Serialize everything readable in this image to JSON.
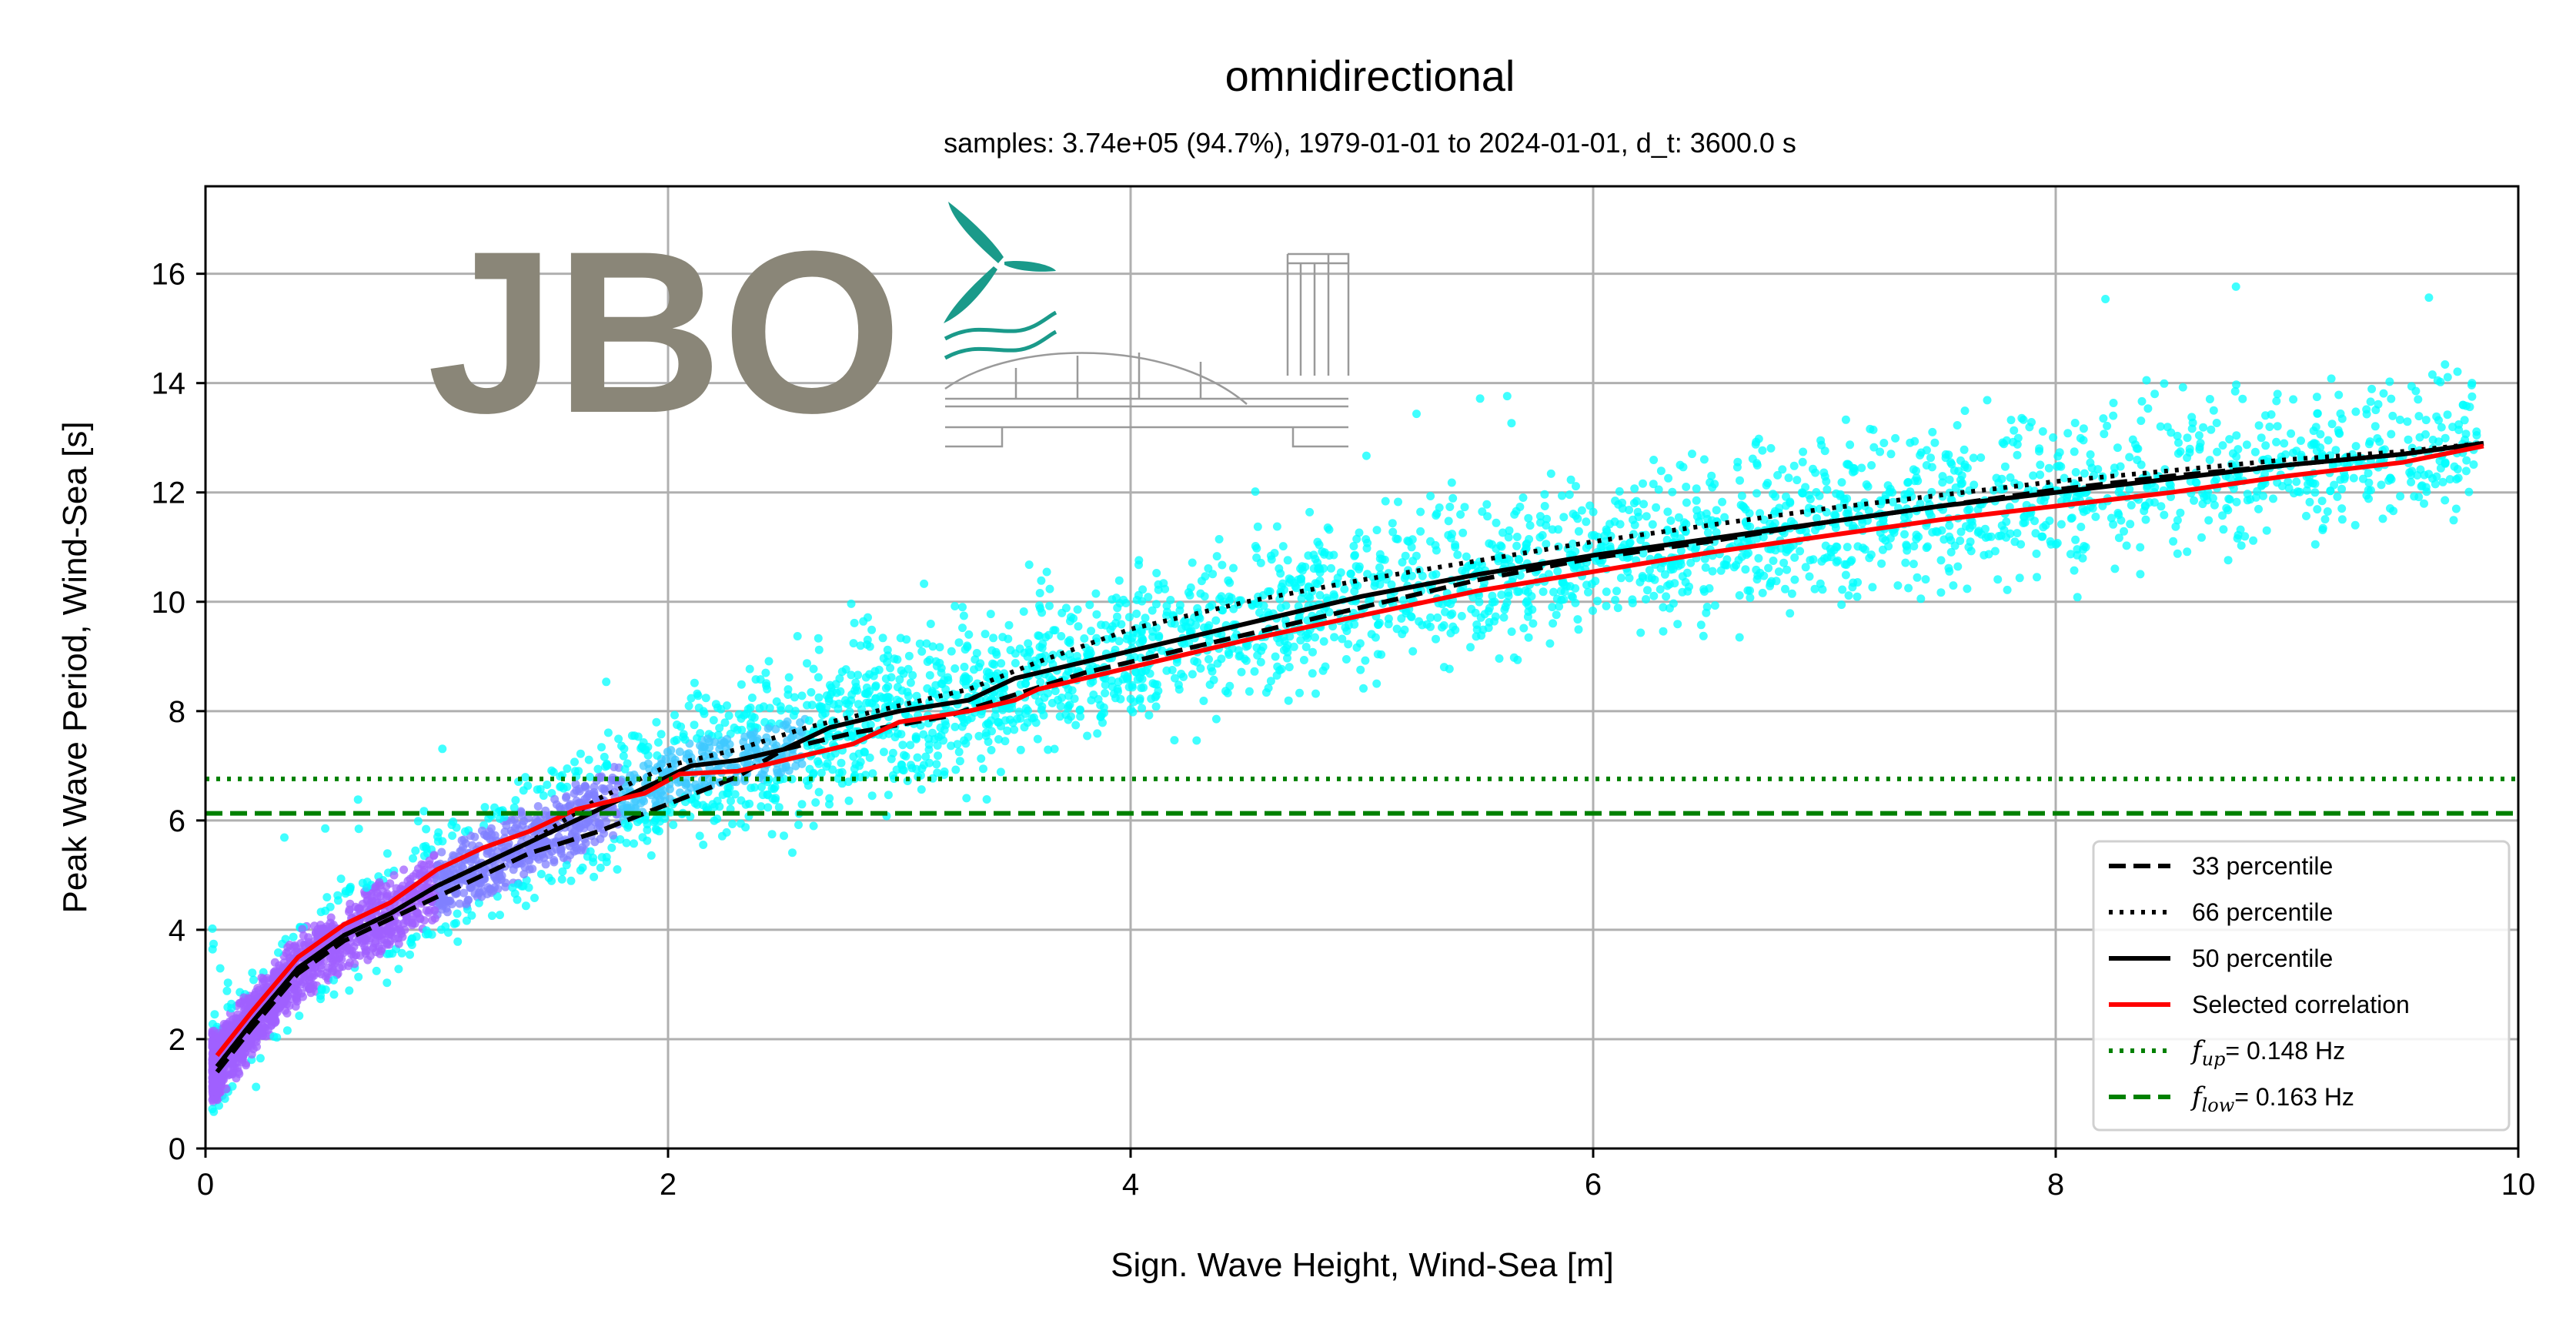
{
  "chart_data": {
    "type": "scatter",
    "title": "omnidirectional",
    "subtitle": "samples: 3.74e+05 (94.7%), 1979-01-01 to 2024-01-01, d_t: 3600.0 s",
    "xlabel": "Sign. Wave Height, Wind-Sea [m]",
    "ylabel": "Peak Wave Period, Wind-Sea [s]",
    "xlim": [
      0,
      10
    ],
    "ylim": [
      0,
      17.6
    ],
    "xticks": [
      0,
      2,
      4,
      6,
      8,
      10
    ],
    "xtick_labels": [
      "0",
      "2",
      "4",
      "6",
      "8",
      "10"
    ],
    "yticks": [
      0,
      2,
      4,
      6,
      8,
      10,
      12,
      14,
      16
    ],
    "ytick_labels": [
      "0",
      "2",
      "4",
      "6",
      "8",
      "10",
      "12",
      "14",
      "16"
    ],
    "grid": true,
    "legend_position": "lower-right",
    "series": [
      {
        "name": "33 percentile",
        "color": "#000000",
        "style": "dashed",
        "x": [
          0.05,
          0.2,
          0.4,
          0.6,
          0.8,
          1.0,
          1.2,
          1.4,
          1.7,
          2.0,
          2.3,
          2.5,
          2.8,
          3.2,
          3.5,
          3.8,
          4.2,
          4.6,
          5.0,
          5.5,
          6.0,
          6.5,
          7.0,
          7.5,
          8.0,
          8.5,
          9.0,
          9.5,
          9.85
        ],
        "y": [
          1.4,
          2.2,
          3.2,
          3.8,
          4.2,
          4.6,
          5.0,
          5.4,
          5.8,
          6.3,
          6.8,
          7.3,
          7.6,
          7.9,
          8.3,
          8.7,
          9.1,
          9.5,
          9.9,
          10.4,
          10.8,
          11.1,
          11.45,
          11.75,
          12.05,
          12.3,
          12.5,
          12.7,
          12.9
        ]
      },
      {
        "name": "66 percentile",
        "color": "#000000",
        "style": "dotted",
        "x": [
          0.05,
          0.2,
          0.4,
          0.6,
          0.8,
          1.0,
          1.2,
          1.4,
          1.7,
          2.0,
          2.3,
          2.6,
          3.0,
          3.3,
          3.6,
          4.0,
          4.5,
          5.0,
          5.5,
          6.0,
          6.5,
          7.0,
          7.5,
          8.0,
          8.5,
          9.0,
          9.5,
          9.85
        ],
        "y": [
          1.5,
          2.3,
          3.3,
          3.9,
          4.3,
          4.8,
          5.2,
          5.6,
          6.4,
          7.0,
          7.3,
          7.7,
          8.1,
          8.4,
          8.9,
          9.5,
          10.0,
          10.4,
          10.75,
          11.1,
          11.4,
          11.7,
          11.95,
          12.2,
          12.4,
          12.6,
          12.75,
          12.9
        ]
      },
      {
        "name": "50 percentile",
        "color": "#000000",
        "style": "solid",
        "x": [
          0.05,
          0.2,
          0.4,
          0.6,
          0.8,
          1.0,
          1.2,
          1.4,
          1.7,
          2.0,
          2.1,
          2.3,
          2.5,
          2.7,
          3.0,
          3.3,
          3.5,
          3.8,
          4.2,
          4.6,
          5.0,
          5.5,
          6.0,
          6.5,
          7.0,
          7.5,
          8.0,
          8.5,
          9.0,
          9.5,
          9.85
        ],
        "y": [
          1.5,
          2.3,
          3.3,
          3.9,
          4.3,
          4.8,
          5.2,
          5.6,
          6.2,
          6.8,
          7.0,
          7.1,
          7.3,
          7.7,
          8.0,
          8.2,
          8.6,
          8.9,
          9.3,
          9.7,
          10.1,
          10.5,
          10.85,
          11.15,
          11.45,
          11.75,
          12.0,
          12.25,
          12.5,
          12.7,
          12.9
        ]
      },
      {
        "name": "Selected correlation",
        "color": "#ff0000",
        "style": "solid",
        "x": [
          0.05,
          0.2,
          0.4,
          0.6,
          0.8,
          1.0,
          1.2,
          1.4,
          1.6,
          1.9,
          2.05,
          2.3,
          2.5,
          2.8,
          3.0,
          3.3,
          3.5,
          3.6,
          4.0,
          4.5,
          5.0,
          5.5,
          6.0,
          6.5,
          7.0,
          7.5,
          8.0,
          8.5,
          9.0,
          9.5,
          9.85
        ],
        "y": [
          1.7,
          2.5,
          3.5,
          4.1,
          4.5,
          5.1,
          5.5,
          5.8,
          6.2,
          6.5,
          6.85,
          6.9,
          7.1,
          7.4,
          7.8,
          8.0,
          8.2,
          8.4,
          8.8,
          9.3,
          9.75,
          10.2,
          10.55,
          10.9,
          11.2,
          11.5,
          11.75,
          12.0,
          12.3,
          12.55,
          12.85
        ]
      },
      {
        "name": "f_up = 0.148 Hz",
        "legend_math": "f",
        "legend_sub": "up",
        "legend_suffix": "= 0.148 Hz",
        "color": "#008000",
        "style": "dotted",
        "orientation": "horizontal",
        "y": 6.76
      },
      {
        "name": "f_low = 0.163 Hz",
        "legend_math": "f",
        "legend_sub": "low",
        "legend_suffix": "= 0.163 Hz",
        "color": "#008000",
        "style": "dashed",
        "orientation": "horizontal",
        "y": 6.13
      }
    ],
    "scatter_colors": [
      "#00ffff",
      "#3fc8ff",
      "#8080ff",
      "#a060ff"
    ]
  },
  "logo": {
    "text": "JBO",
    "color": "#8a8678",
    "accent": "#1a9a8a"
  }
}
